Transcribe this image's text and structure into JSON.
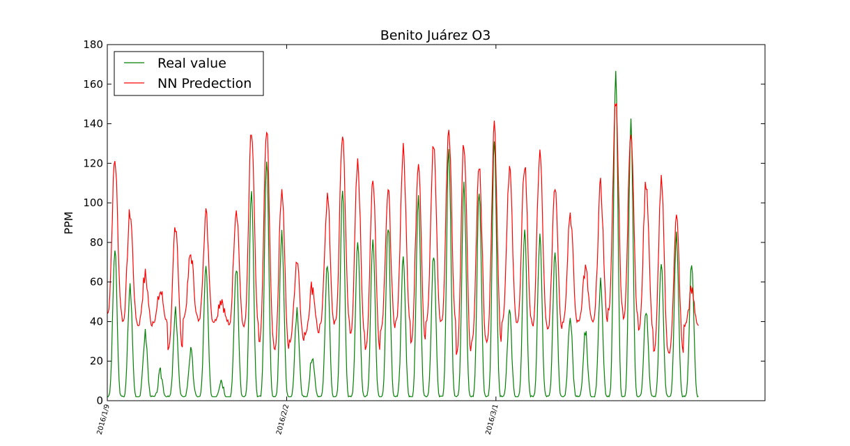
{
  "chart_data": {
    "type": "line",
    "title": "Benito Juárez O3",
    "xlabel": "",
    "ylabel": "PPM",
    "ylim": [
      0,
      180
    ],
    "yticks": [
      0,
      20,
      40,
      60,
      80,
      100,
      120,
      140,
      160,
      180
    ],
    "x_tick_labels": [
      "2016/1/9",
      "2016/2/2",
      "2016/3/1"
    ],
    "x_tick_dates": [
      "2016-01-09",
      "2016-02-02",
      "2016-03-01"
    ],
    "xlim": [
      "2016-01-09",
      "2016-04-06"
    ],
    "grid": false,
    "legend_position": "top-left",
    "colors": {
      "real": "#008000",
      "pred": "#ff0000"
    },
    "series": [
      {
        "name": "Real value",
        "color": "#008000",
        "x": [
          "2016-01-09",
          "2016-01-10",
          "2016-01-11",
          "2016-01-12",
          "2016-01-13",
          "2016-01-14",
          "2016-01-15",
          "2016-01-16",
          "2016-01-17",
          "2016-01-18",
          "2016-01-19",
          "2016-01-20",
          "2016-01-21",
          "2016-01-22",
          "2016-01-23",
          "2016-01-24",
          "2016-01-25",
          "2016-01-26",
          "2016-01-27",
          "2016-01-28",
          "2016-01-29",
          "2016-01-30",
          "2016-01-31",
          "2016-02-01",
          "2016-02-02",
          "2016-02-03",
          "2016-02-04",
          "2016-02-05",
          "2016-02-06",
          "2016-02-07",
          "2016-02-08",
          "2016-02-09",
          "2016-02-10",
          "2016-02-11",
          "2016-02-12",
          "2016-02-13",
          "2016-02-14",
          "2016-02-15",
          "2016-02-16",
          "2016-02-17",
          "2016-02-18",
          "2016-02-19",
          "2016-02-20",
          "2016-02-21",
          "2016-02-22",
          "2016-02-23",
          "2016-02-24",
          "2016-02-25",
          "2016-02-26",
          "2016-02-27",
          "2016-02-28",
          "2016-02-29",
          "2016-03-01",
          "2016-03-02",
          "2016-03-03",
          "2016-03-04",
          "2016-03-05",
          "2016-03-06",
          "2016-03-07",
          "2016-03-08",
          "2016-03-09",
          "2016-03-10",
          "2016-03-11",
          "2016-03-12",
          "2016-03-13",
          "2016-03-14",
          "2016-03-15",
          "2016-03-16",
          "2016-03-17",
          "2016-03-18",
          "2016-03-19",
          "2016-03-20",
          "2016-03-21",
          "2016-03-22",
          "2016-03-23",
          "2016-03-24",
          "2016-03-25",
          "2016-03-26",
          "2016-03-27",
          "2016-03-28",
          "2016-03-29",
          "2016-03-30",
          "2016-03-31",
          "2016-04-01",
          "2016-04-02"
        ],
        "peaks": [
          76,
          58,
          34,
          14,
          45,
          25,
          67,
          11,
          68,
          105,
          123,
          86,
          45,
          23,
          69,
          107,
          81,
          83,
          89,
          71,
          104,
          75,
          127,
          108,
          106,
          131,
          45,
          85,
          83,
          74,
          42,
          35,
          60,
          167,
          140,
          45,
          68,
          83,
          71
        ],
        "lows": [
          2,
          2,
          2,
          2,
          2,
          2,
          2,
          2,
          2,
          2,
          2,
          2,
          2,
          2,
          2,
          2,
          2,
          2,
          2,
          2,
          2,
          2,
          2,
          2,
          2,
          2,
          2,
          2,
          2,
          2,
          2,
          2,
          2,
          2,
          2,
          2,
          2,
          2,
          2
        ]
      },
      {
        "name": "NN Predection",
        "color": "#ff0000",
        "peaks": [
          122,
          95,
          63,
          55,
          90,
          74,
          94,
          52,
          98,
          135,
          136,
          108,
          72,
          58,
          103,
          135,
          119,
          113,
          105,
          126,
          123,
          130,
          139,
          130,
          121,
          138,
          118,
          120,
          125,
          110,
          95,
          66,
          108,
          153,
          138,
          111,
          110,
          92,
          55
        ],
        "lows": [
          44,
          40,
          38,
          40,
          26,
          42,
          40,
          40,
          38,
          38,
          30,
          26,
          30,
          34,
          38,
          40,
          34,
          26,
          36,
          40,
          30,
          40,
          40,
          24,
          30,
          30,
          40,
          40,
          38,
          36,
          40,
          40,
          40,
          46,
          42,
          36,
          25,
          24,
          38
        ]
      }
    ]
  }
}
